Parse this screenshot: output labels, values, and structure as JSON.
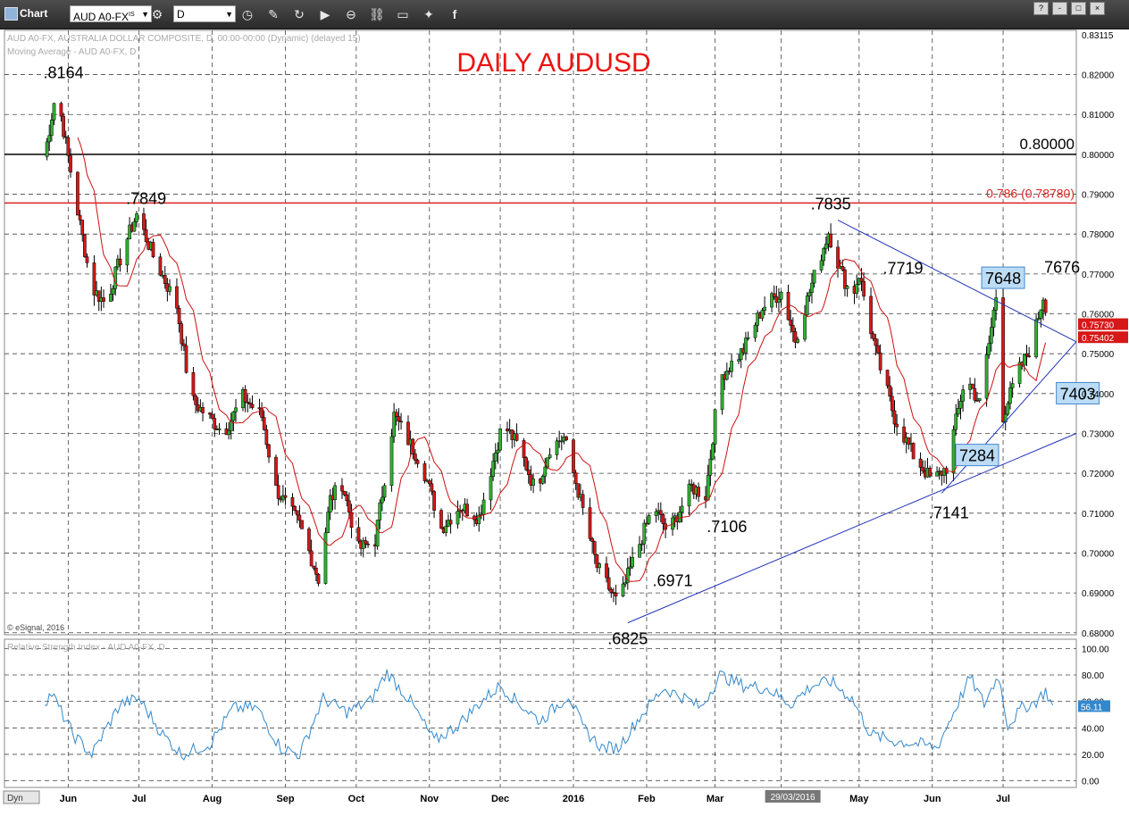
{
  "app": {
    "title": "Chart"
  },
  "toolbar": {
    "symbol": "AUD A0-FX",
    "symbol_suffix": "IS",
    "interval": "D"
  },
  "window_buttons": [
    "?",
    "-",
    "□",
    "×"
  ],
  "colors": {
    "up_candle": "#2fb42f",
    "down_candle": "#d61818",
    "wick": "#000000",
    "moving_average": "#cc1111",
    "trendline": "#2233bb",
    "rsi": "#3388cc",
    "fib_line": "#dd2222",
    "level_line": "#000000",
    "callout_bg": "#bcdcf5"
  },
  "chart_data": [
    {
      "type": "candlestick",
      "title": "DAILY AUDUSD",
      "header": [
        "AUD A0-FX, AUSTRALIA DOLLAR COMPOSITE, D, 00:00-00:00 (Dynamic) (delayed 15)",
        "Moving Average - AUD A0-FX, D"
      ],
      "copyright": "© eSignal, 2016",
      "ylim": [
        0.6795,
        0.8311
      ],
      "y_ticks": [
        0.68,
        0.69,
        0.7,
        0.71,
        0.72,
        0.73,
        0.74,
        0.75,
        0.76,
        0.77,
        0.78,
        0.79,
        0.8,
        0.81,
        0.82
      ],
      "y_tick_labels": [
        "0.68000",
        "0.69000",
        "0.70000",
        "0.71000",
        "0.72000",
        "0.73000",
        "0.74000",
        "0.75000",
        "0.76000",
        "0.77000",
        "0.78000",
        "0.79000",
        "0.80000",
        "0.81000",
        "0.82000"
      ],
      "y_top_label": "0.83115",
      "last_price_labels": [
        {
          "value": 0.7573,
          "text": "0.75730",
          "color": "#d61818"
        },
        {
          "value": 0.75402,
          "text": "0.75402",
          "color": "#d61818"
        }
      ],
      "x_months": [
        {
          "label": "Jun",
          "day": 10
        },
        {
          "label": "Jul",
          "day": 40
        },
        {
          "label": "Aug",
          "day": 71
        },
        {
          "label": "Sep",
          "day": 102
        },
        {
          "label": "Oct",
          "day": 132
        },
        {
          "label": "Nov",
          "day": 163
        },
        {
          "label": "Dec",
          "day": 193
        },
        {
          "label": "2016",
          "day": 224
        },
        {
          "label": "Feb",
          "day": 255
        },
        {
          "label": "Mar",
          "day": 284
        },
        {
          "label": "29/03/2016",
          "day": 312,
          "highlight": true
        },
        {
          "label": "May",
          "day": 345
        },
        {
          "label": "Jun",
          "day": 376
        },
        {
          "label": "Jul",
          "day": 406
        }
      ],
      "x_range_days": [
        -17,
        437
      ],
      "anchors": [
        {
          "day": 0,
          "price": 0.7995
        },
        {
          "day": 5,
          "price": 0.8164
        },
        {
          "day": 14,
          "price": 0.7856
        },
        {
          "day": 20,
          "price": 0.7664
        },
        {
          "day": 26,
          "price": 0.7625
        },
        {
          "day": 34,
          "price": 0.7775
        },
        {
          "day": 39,
          "price": 0.7849
        },
        {
          "day": 46,
          "price": 0.7745
        },
        {
          "day": 56,
          "price": 0.762
        },
        {
          "day": 62,
          "price": 0.7385
        },
        {
          "day": 76,
          "price": 0.7302
        },
        {
          "day": 84,
          "price": 0.7392
        },
        {
          "day": 92,
          "price": 0.7342
        },
        {
          "day": 98,
          "price": 0.716
        },
        {
          "day": 108,
          "price": 0.7072
        },
        {
          "day": 116,
          "price": 0.6935
        },
        {
          "day": 121,
          "price": 0.7135
        },
        {
          "day": 126,
          "price": 0.7175
        },
        {
          "day": 133,
          "price": 0.701
        },
        {
          "day": 140,
          "price": 0.7032
        },
        {
          "day": 148,
          "price": 0.7345
        },
        {
          "day": 160,
          "price": 0.722
        },
        {
          "day": 168,
          "price": 0.7062
        },
        {
          "day": 176,
          "price": 0.7118
        },
        {
          "day": 184,
          "price": 0.709
        },
        {
          "day": 194,
          "price": 0.7325
        },
        {
          "day": 201,
          "price": 0.7265
        },
        {
          "day": 208,
          "price": 0.7155
        },
        {
          "day": 214,
          "price": 0.7265
        },
        {
          "day": 220,
          "price": 0.729
        },
        {
          "day": 226,
          "price": 0.7155
        },
        {
          "day": 234,
          "price": 0.6965
        },
        {
          "day": 243,
          "price": 0.687
        },
        {
          "day": 248,
          "price": 0.696
        },
        {
          "day": 258,
          "price": 0.712
        },
        {
          "day": 264,
          "price": 0.705
        },
        {
          "day": 274,
          "price": 0.7165
        },
        {
          "day": 280,
          "price": 0.7145
        },
        {
          "day": 286,
          "price": 0.744
        },
        {
          "day": 296,
          "price": 0.751
        },
        {
          "day": 304,
          "price": 0.7615
        },
        {
          "day": 312,
          "price": 0.7655
        },
        {
          "day": 318,
          "price": 0.7535
        },
        {
          "day": 325,
          "price": 0.7675
        },
        {
          "day": 332,
          "price": 0.7805
        },
        {
          "day": 337,
          "price": 0.771
        },
        {
          "day": 342,
          "price": 0.764
        },
        {
          "day": 345,
          "price": 0.77
        },
        {
          "day": 352,
          "price": 0.7505
        },
        {
          "day": 360,
          "price": 0.734
        },
        {
          "day": 368,
          "price": 0.7245
        },
        {
          "day": 376,
          "price": 0.718
        },
        {
          "day": 382,
          "price": 0.7215
        },
        {
          "day": 390,
          "price": 0.7445
        },
        {
          "day": 396,
          "price": 0.7375
        },
        {
          "day": 400,
          "price": 0.7525
        },
        {
          "day": 403,
          "price": 0.7645
        },
        {
          "day": 406,
          "price": 0.7345
        },
        {
          "day": 412,
          "price": 0.745
        },
        {
          "day": 418,
          "price": 0.752
        },
        {
          "day": 423,
          "price": 0.7645
        },
        {
          "day": 426,
          "price": 0.7573
        }
      ],
      "level_lines": [
        {
          "price": 0.8,
          "label": "0.80000",
          "color": "#000000"
        },
        {
          "price": 0.7878,
          "label": "0.786 (0.78780)",
          "color": "#dd2222"
        }
      ],
      "trendlines": [
        {
          "from": {
            "day": 247,
            "price": 0.6825
          },
          "to": {
            "day": 437,
            "price": 0.73
          }
        },
        {
          "from": {
            "day": 380,
            "price": 0.715
          },
          "to": {
            "day": 437,
            "price": 0.753
          }
        },
        {
          "from": {
            "day": 336,
            "price": 0.7835
          },
          "to": {
            "day": 437,
            "price": 0.753
          }
        }
      ],
      "annotations": [
        {
          "text": ".8164",
          "day": 8,
          "price": 0.8164,
          "pos": "above"
        },
        {
          "text": ".7849",
          "day": 43,
          "price": 0.7849,
          "pos": "above"
        },
        {
          "text": ".7835",
          "day": 333,
          "price": 0.7835,
          "pos": "above"
        },
        {
          "text": ".7719",
          "day": 350,
          "price": 0.7719,
          "pos": "right"
        },
        {
          "text": "7648",
          "day": 406,
          "price": 0.7648,
          "pos": "above",
          "boxed": true
        },
        {
          "text": "7676",
          "day": 431,
          "price": 0.7676,
          "pos": "above"
        },
        {
          "text": "7403",
          "day": 424,
          "price": 0.7403,
          "pos": "right",
          "boxed": true
        },
        {
          "text": "7284",
          "day": 395,
          "price": 0.7284,
          "pos": "below",
          "boxed": true
        },
        {
          "text": ".7141",
          "day": 383,
          "price": 0.7141,
          "pos": "below"
        },
        {
          "text": ".7106",
          "day": 289,
          "price": 0.7106,
          "pos": "below"
        },
        {
          "text": ".6971",
          "day": 266,
          "price": 0.6971,
          "pos": "below"
        },
        {
          "text": ".6825",
          "day": 247,
          "price": 0.6825,
          "pos": "below"
        }
      ]
    },
    {
      "type": "line",
      "title": "Relative Strength Index - AUD A0-FX, D",
      "ylim": [
        -5,
        107
      ],
      "y_ticks": [
        0,
        20,
        40,
        60,
        80,
        100
      ],
      "y_tick_labels": [
        "0.00",
        "20.00",
        "40.00",
        "60.00",
        "80.00",
        "100.00"
      ],
      "last_value": {
        "value": 56.11,
        "text": "56.11"
      },
      "anchors": [
        {
          "day": 0,
          "value": 60
        },
        {
          "day": 3,
          "value": 66
        },
        {
          "day": 12,
          "value": 35
        },
        {
          "day": 20,
          "value": 20
        },
        {
          "day": 32,
          "value": 58
        },
        {
          "day": 40,
          "value": 62
        },
        {
          "day": 50,
          "value": 35
        },
        {
          "day": 58,
          "value": 20
        },
        {
          "day": 70,
          "value": 28
        },
        {
          "day": 80,
          "value": 55
        },
        {
          "day": 90,
          "value": 55
        },
        {
          "day": 100,
          "value": 25
        },
        {
          "day": 108,
          "value": 20
        },
        {
          "day": 118,
          "value": 62
        },
        {
          "day": 128,
          "value": 52
        },
        {
          "day": 138,
          "value": 60
        },
        {
          "day": 145,
          "value": 82
        },
        {
          "day": 155,
          "value": 60
        },
        {
          "day": 165,
          "value": 30
        },
        {
          "day": 175,
          "value": 42
        },
        {
          "day": 185,
          "value": 60
        },
        {
          "day": 193,
          "value": 72
        },
        {
          "day": 200,
          "value": 60
        },
        {
          "day": 210,
          "value": 45
        },
        {
          "day": 222,
          "value": 65
        },
        {
          "day": 228,
          "value": 40
        },
        {
          "day": 236,
          "value": 25
        },
        {
          "day": 243,
          "value": 25
        },
        {
          "day": 252,
          "value": 48
        },
        {
          "day": 262,
          "value": 70
        },
        {
          "day": 272,
          "value": 62
        },
        {
          "day": 278,
          "value": 55
        },
        {
          "day": 286,
          "value": 80
        },
        {
          "day": 296,
          "value": 72
        },
        {
          "day": 306,
          "value": 70
        },
        {
          "day": 316,
          "value": 58
        },
        {
          "day": 325,
          "value": 72
        },
        {
          "day": 333,
          "value": 75
        },
        {
          "day": 342,
          "value": 62
        },
        {
          "day": 350,
          "value": 35
        },
        {
          "day": 360,
          "value": 30
        },
        {
          "day": 370,
          "value": 28
        },
        {
          "day": 378,
          "value": 25
        },
        {
          "day": 384,
          "value": 48
        },
        {
          "day": 392,
          "value": 78
        },
        {
          "day": 398,
          "value": 58
        },
        {
          "day": 404,
          "value": 80
        },
        {
          "day": 408,
          "value": 42
        },
        {
          "day": 414,
          "value": 55
        },
        {
          "day": 420,
          "value": 60
        },
        {
          "day": 424,
          "value": 68
        },
        {
          "day": 427,
          "value": 56
        }
      ]
    }
  ],
  "status": {
    "mode_label": "Dyn"
  }
}
